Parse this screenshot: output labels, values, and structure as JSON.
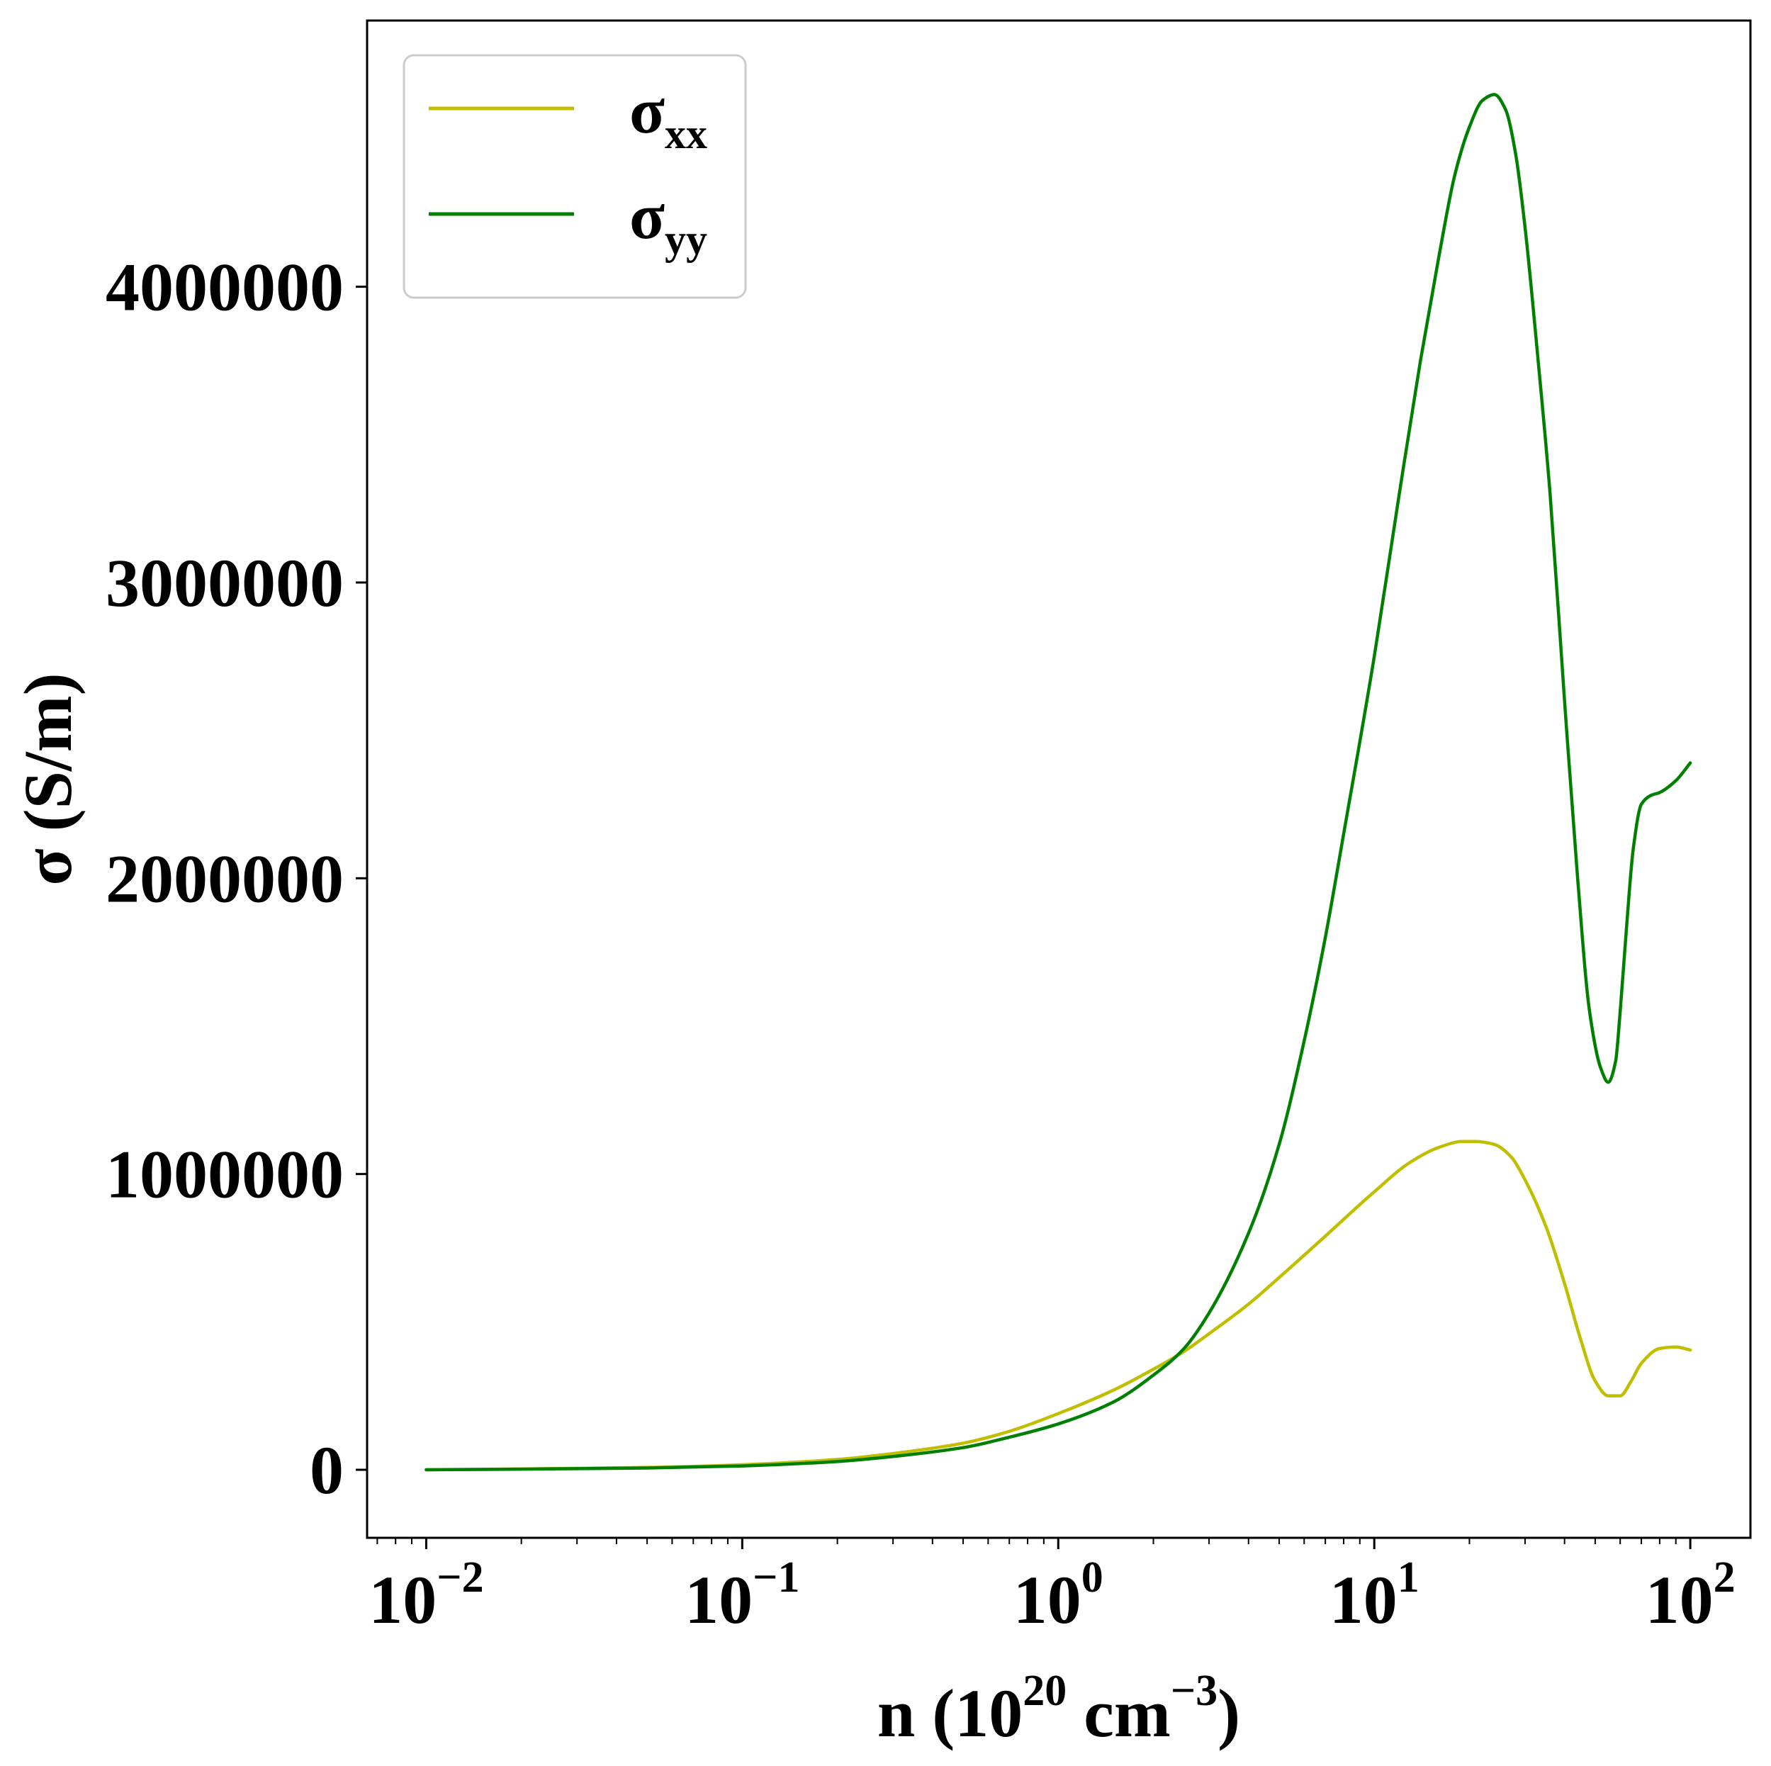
{
  "chart_data": {
    "type": "line",
    "xlabel": "n (10^20 cm^-3)",
    "xlabel_parts": {
      "base": "n (10",
      "exp1": "20",
      "mid": " cm",
      "exp2": "−3",
      "end": ")"
    },
    "ylabel": "σ (S/m)",
    "xscale": "log",
    "xlim": [
      0.0065,
      155
    ],
    "ylim": [
      -230000,
      4900000
    ],
    "grid": false,
    "legend_position": "top-left",
    "x_ticks": [
      {
        "value": 0.01,
        "exp": "−2"
      },
      {
        "value": 0.1,
        "exp": "−1"
      },
      {
        "value": 1,
        "exp": "0"
      },
      {
        "value": 10,
        "exp": "1"
      },
      {
        "value": 100,
        "exp": "2"
      }
    ],
    "x_tick_base": "10",
    "y_ticks": [
      0,
      1000000,
      2000000,
      3000000,
      4000000
    ],
    "y_tick_labels": [
      "0",
      "1000000",
      "2000000",
      "3000000",
      "4000000"
    ],
    "series": [
      {
        "name": "σxx",
        "name_base": "σ",
        "name_sub": "xx",
        "color": "#bfbf00",
        "x": [
          0.01,
          0.02,
          0.05,
          0.1,
          0.2,
          0.3,
          0.5,
          0.7,
          1.0,
          1.5,
          2.0,
          2.5,
          3.0,
          4.0,
          5.0,
          7.0,
          10.0,
          13.0,
          16.0,
          19.0,
          21.0,
          24.0,
          27.0,
          30.0,
          35.0,
          40.0,
          45.0,
          50.0,
          55.0,
          60.0,
          65.0,
          70.0,
          80.0,
          90.0,
          100.0
        ],
        "y": [
          0,
          3000,
          8000,
          17000,
          35000,
          55000,
          90000,
          130000,
          190000,
          270000,
          340000,
          400000,
          460000,
          560000,
          650000,
          790000,
          940000,
          1040000,
          1090000,
          1110000,
          1110000,
          1100000,
          1060000,
          980000,
          820000,
          630000,
          440000,
          300000,
          250000,
          250000,
          300000,
          360000,
          410000,
          415000,
          405000
        ]
      },
      {
        "name": "σyy",
        "name_base": "σ",
        "name_sub": "yy",
        "color": "#008000",
        "x": [
          0.01,
          0.02,
          0.05,
          0.1,
          0.2,
          0.3,
          0.5,
          0.7,
          1.0,
          1.5,
          2.0,
          2.5,
          3.0,
          4.0,
          5.0,
          6.0,
          7.0,
          8.0,
          10.0,
          12.0,
          14.0,
          16.0,
          18.0,
          20.0,
          22.0,
          24.0,
          26.0,
          28.0,
          30.0,
          33.0,
          36.0,
          40.0,
          44.0,
          48.0,
          52.0,
          55.0,
          58.0,
          60.0,
          63.0,
          66.0,
          70.0,
          75.0,
          80.0,
          90.0,
          100.0
        ],
        "y": [
          0,
          2000,
          6000,
          13000,
          28000,
          45000,
          75000,
          110000,
          155000,
          230000,
          320000,
          410000,
          530000,
          800000,
          1100000,
          1450000,
          1800000,
          2150000,
          2750000,
          3300000,
          3750000,
          4100000,
          4380000,
          4540000,
          4630000,
          4650000,
          4600000,
          4450000,
          4200000,
          3750000,
          3300000,
          2600000,
          2000000,
          1550000,
          1360000,
          1310000,
          1380000,
          1550000,
          1850000,
          2100000,
          2250000,
          2280000,
          2290000,
          2330000,
          2390000
        ]
      }
    ]
  }
}
